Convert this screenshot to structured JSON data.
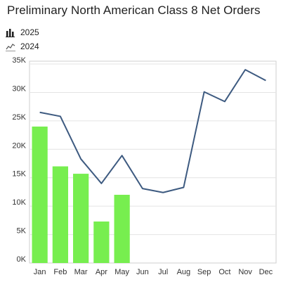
{
  "title": "Preliminary North American Class 8 Net Orders",
  "legend": [
    {
      "label": "2025",
      "icon": "bar-chart-icon"
    },
    {
      "label": "2024",
      "icon": "line-chart-icon"
    }
  ],
  "colors": {
    "bar": "#77ee4f",
    "line": "#3d5a80",
    "grid": "#e4e4e4",
    "axis": "#cfcfcf"
  },
  "chart_data": {
    "type": "bar",
    "title": "Preliminary North American Class 8 Net Orders",
    "xlabel": "",
    "ylabel": "",
    "categories": [
      "Jan",
      "Feb",
      "Mar",
      "Apr",
      "May",
      "Jun",
      "Jul",
      "Aug",
      "Sep",
      "Oct",
      "Nov",
      "Dec"
    ],
    "yticks": [
      "0K",
      "5K",
      "10K",
      "15K",
      "20K",
      "25K",
      "30K",
      "35K"
    ],
    "ylim": [
      0,
      35500
    ],
    "grid": true,
    "legend_position": "top-left",
    "series": [
      {
        "name": "2025",
        "type": "bar",
        "values": [
          24000,
          17000,
          15700,
          7300,
          12000,
          null,
          null,
          null,
          null,
          null,
          null,
          null
        ]
      },
      {
        "name": "2024",
        "type": "line",
        "values": [
          26500,
          25800,
          18300,
          14000,
          18900,
          13100,
          12400,
          13300,
          30100,
          28400,
          34000,
          32100
        ]
      }
    ]
  }
}
